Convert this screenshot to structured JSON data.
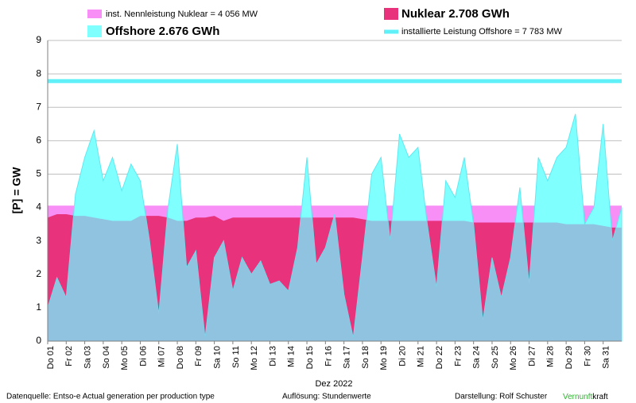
{
  "chart_data": {
    "type": "area",
    "ylabel": "[P] = GW",
    "xlabel": "Dez 2022",
    "ylim": [
      0,
      9
    ],
    "yticks": [
      0,
      1,
      2,
      3,
      4,
      5,
      6,
      7,
      8,
      9
    ],
    "xlim": [
      0,
      31
    ],
    "xticks": [
      {
        "value": 0,
        "label": "Do 01"
      },
      {
        "value": 1,
        "label": "Fr 02"
      },
      {
        "value": 2,
        "label": "Sa 03"
      },
      {
        "value": 3,
        "label": "So 04"
      },
      {
        "value": 4,
        "label": "Mo 05"
      },
      {
        "value": 5,
        "label": "Di 06"
      },
      {
        "value": 6,
        "label": "Mi 07"
      },
      {
        "value": 7,
        "label": "Do 08"
      },
      {
        "value": 8,
        "label": "Fr 09"
      },
      {
        "value": 9,
        "label": "Sa 10"
      },
      {
        "value": 10,
        "label": "So 11"
      },
      {
        "value": 11,
        "label": "Mo 12"
      },
      {
        "value": 12,
        "label": "Di 13"
      },
      {
        "value": 13,
        "label": "Mi 14"
      },
      {
        "value": 14,
        "label": "Do 15"
      },
      {
        "value": 15,
        "label": "Fr 16"
      },
      {
        "value": 16,
        "label": "Sa 17"
      },
      {
        "value": 17,
        "label": "So 18"
      },
      {
        "value": 18,
        "label": "Mo 19"
      },
      {
        "value": 19,
        "label": "Di 20"
      },
      {
        "value": 20,
        "label": "Mi 21"
      },
      {
        "value": 21,
        "label": "Do 22"
      },
      {
        "value": 22,
        "label": "Fr 23"
      },
      {
        "value": 23,
        "label": "Sa 24"
      },
      {
        "value": 24,
        "label": "So 25"
      },
      {
        "value": 25,
        "label": "Mo 26"
      },
      {
        "value": 26,
        "label": "Di 27"
      },
      {
        "value": 27,
        "label": "Mi 28"
      },
      {
        "value": 28,
        "label": "Do 29"
      },
      {
        "value": 29,
        "label": "Fr 30"
      },
      {
        "value": 30,
        "label": "Sa 31"
      }
    ],
    "grid": true,
    "x": [
      0,
      0.5,
      1,
      1.5,
      2,
      2.5,
      3,
      3.5,
      4,
      4.5,
      5,
      5.5,
      6,
      6.5,
      7,
      7.5,
      8,
      8.5,
      9,
      9.5,
      10,
      10.5,
      11,
      11.5,
      12,
      12.5,
      13,
      13.5,
      14,
      14.5,
      15,
      15.5,
      16,
      16.5,
      17,
      17.5,
      18,
      18.5,
      19,
      19.5,
      20,
      20.5,
      21,
      21.5,
      22,
      22.5,
      23,
      23.5,
      24,
      24.5,
      25,
      25.5,
      26,
      26.5,
      27,
      27.5,
      28,
      28.5,
      29,
      29.5,
      30,
      30.5,
      31
    ],
    "series": [
      {
        "name": "Nuklear 2.708 GWh",
        "color": "#e8327c",
        "values": [
          3.7,
          3.8,
          3.8,
          3.75,
          3.75,
          3.7,
          3.65,
          3.6,
          3.6,
          3.6,
          3.75,
          3.75,
          3.75,
          3.7,
          3.6,
          3.6,
          3.7,
          3.7,
          3.75,
          3.6,
          3.7,
          3.7,
          3.7,
          3.7,
          3.7,
          3.7,
          3.7,
          3.7,
          3.7,
          3.7,
          3.7,
          3.7,
          3.7,
          3.7,
          3.65,
          3.6,
          3.6,
          3.6,
          3.6,
          3.6,
          3.6,
          3.6,
          3.6,
          3.6,
          3.6,
          3.6,
          3.55,
          3.55,
          3.55,
          3.55,
          3.55,
          3.55,
          3.55,
          3.55,
          3.55,
          3.55,
          3.5,
          3.5,
          3.5,
          3.5,
          3.45,
          3.4,
          3.4
        ]
      },
      {
        "name": "Offshore 2.676 GWh",
        "color": "#80ffff",
        "values": [
          1.0,
          1.9,
          1.3,
          4.4,
          5.5,
          6.3,
          4.8,
          5.5,
          4.5,
          5.3,
          4.8,
          3.0,
          0.8,
          4.0,
          5.9,
          2.2,
          2.7,
          0.1,
          2.5,
          3.0,
          1.5,
          2.5,
          2.0,
          2.4,
          1.7,
          1.8,
          1.5,
          2.8,
          5.5,
          2.3,
          2.8,
          3.8,
          1.4,
          0.1,
          2.5,
          5.0,
          5.5,
          3.0,
          6.2,
          5.5,
          5.8,
          3.5,
          1.6,
          4.8,
          4.3,
          5.5,
          3.5,
          0.6,
          2.5,
          1.3,
          2.5,
          4.6,
          1.7,
          5.5,
          4.8,
          5.5,
          5.8,
          6.8,
          3.5,
          4.0,
          6.5,
          3.0,
          4.0
        ]
      }
    ],
    "overlap_color": "#8fc3e0",
    "reference_lines": [
      {
        "name": "inst. Nennleistung Nuklear = 4 056 MW",
        "value": 4.056,
        "color": "#f78ff7"
      },
      {
        "name": "installierte Leistung Offshore = 7 783 MW",
        "value": 7.783,
        "color": "#5ff0f8"
      }
    ],
    "footer": {
      "source": "Datenquelle: Entso-e  Actual generation per production type",
      "resolution": "Auflösung: Stundenwerte",
      "author": "Darstellung:  Rolf Schuster",
      "brand_green": "Vernunft",
      "brand_black": "kraft"
    }
  }
}
